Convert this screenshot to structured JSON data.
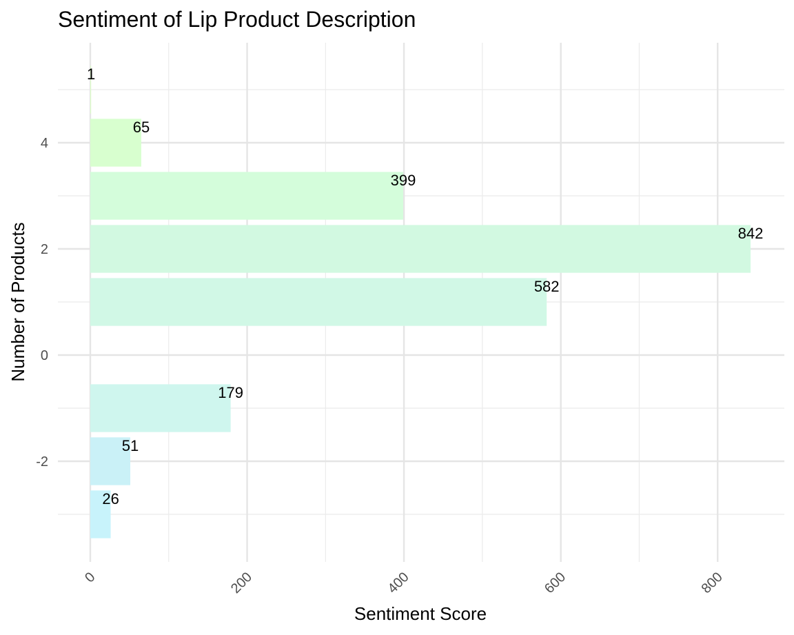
{
  "chart_data": {
    "type": "bar",
    "orientation": "horizontal",
    "title": "Sentiment of Lip Product Description",
    "xlabel": "Sentiment Score",
    "ylabel": "Number of Products",
    "xlim": [
      0,
      842
    ],
    "ylim": [
      -3.5,
      5.5
    ],
    "x_ticks": [
      0,
      200,
      400,
      600,
      800
    ],
    "x_tick_labels": [
      "0",
      "200",
      "400",
      "600",
      "800"
    ],
    "y_ticks": [
      -2,
      0,
      2,
      4
    ],
    "y_tick_labels": [
      "-2",
      "0",
      "2",
      "4"
    ],
    "grid": true,
    "legend": "none",
    "bars": [
      {
        "y": -3,
        "value": 26,
        "label": "26",
        "color": "#c8f3fb"
      },
      {
        "y": -2,
        "value": 51,
        "label": "51",
        "color": "#caf1f7"
      },
      {
        "y": -1,
        "value": 179,
        "label": "179",
        "color": "#cff6ee"
      },
      {
        "y": 1,
        "value": 582,
        "label": "582",
        "color": "#d1f8e6"
      },
      {
        "y": 2,
        "value": 842,
        "label": "842",
        "color": "#d2f9e1"
      },
      {
        "y": 3,
        "value": 399,
        "label": "399",
        "color": "#d4fddb"
      },
      {
        "y": 4,
        "value": 65,
        "label": "65",
        "color": "#d8ffcf"
      },
      {
        "y": 5,
        "value": 1,
        "label": "1",
        "color": "#ddffc8"
      }
    ]
  }
}
